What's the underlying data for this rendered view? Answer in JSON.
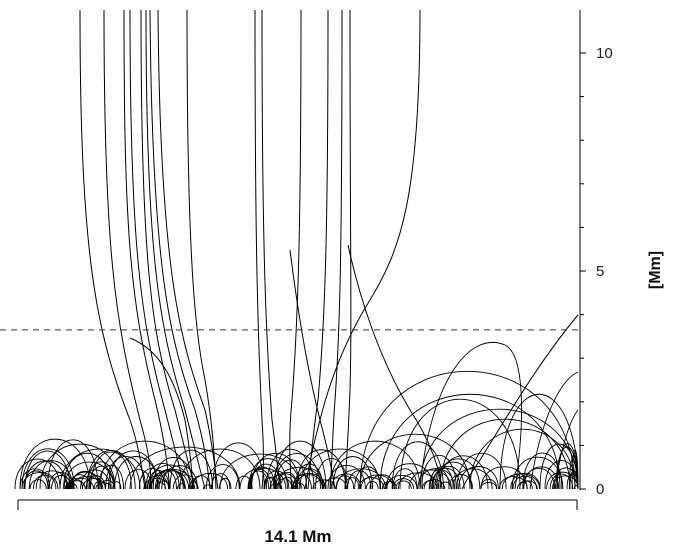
{
  "figure": {
    "y_axis": {
      "label": "[Mm]",
      "ticks": [
        "0",
        "5",
        "10"
      ],
      "range": [
        0,
        11
      ]
    },
    "scale_bar": {
      "label": "14.1 Mm"
    },
    "reference_line": {
      "height": 3.65,
      "style": "dashed"
    }
  }
}
